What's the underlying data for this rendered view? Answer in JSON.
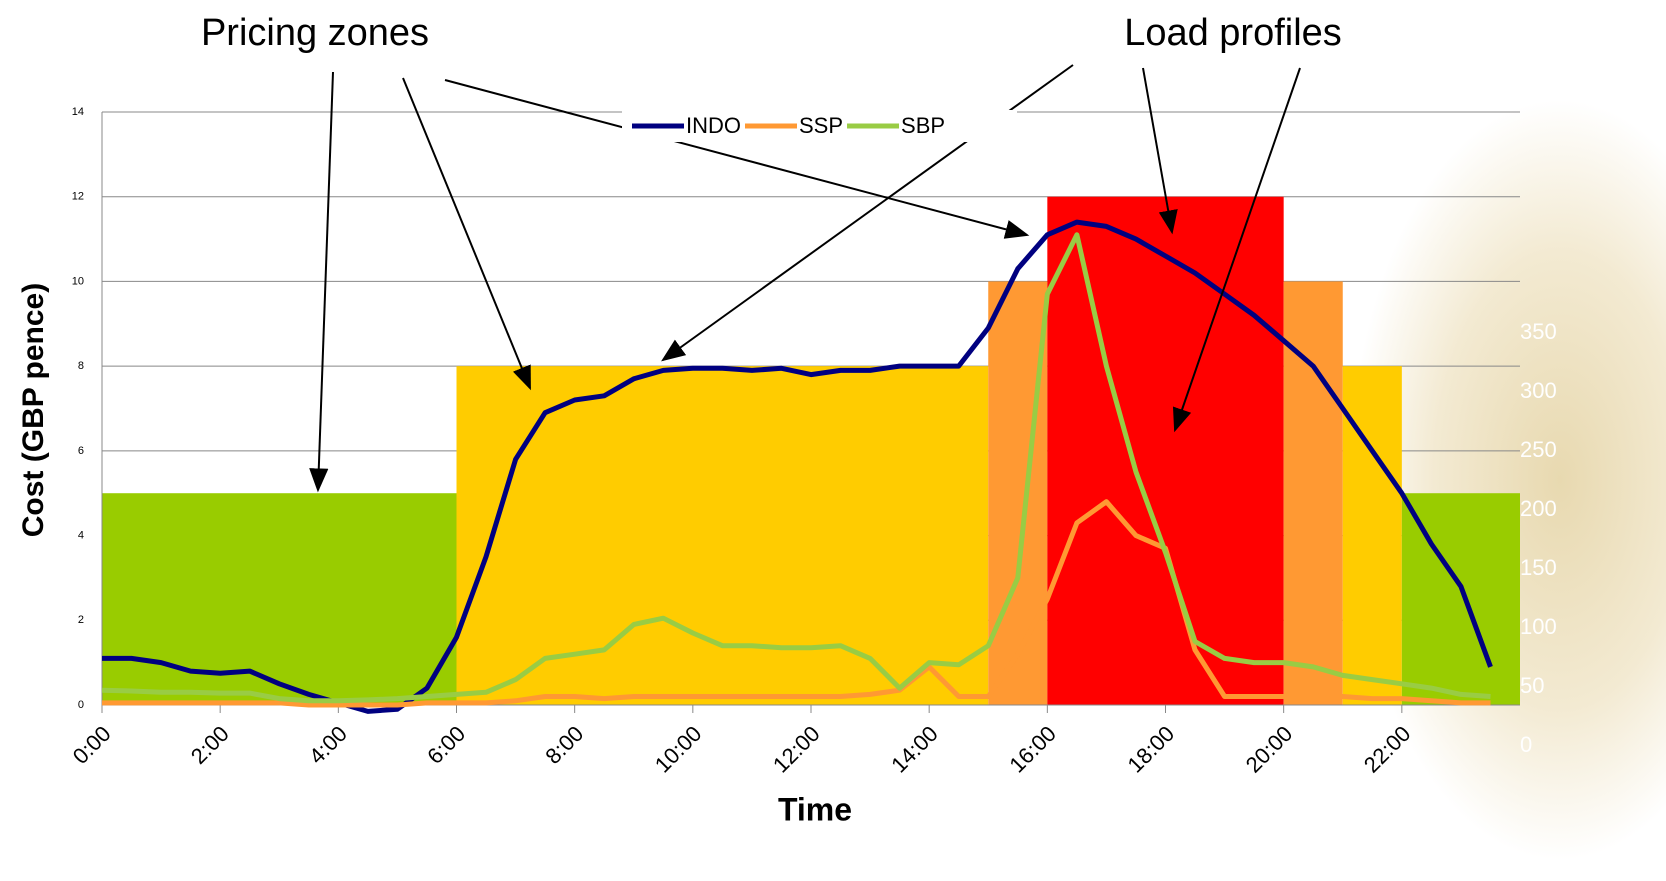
{
  "chart_data": {
    "type": "line",
    "annotations": [
      "Pricing zones",
      "Load profiles"
    ],
    "y_label": "Cost (GBP pence)",
    "x_label": "Time",
    "legend": "top",
    "grid": true,
    "xlim": [
      0,
      24
    ],
    "ylim": [
      0,
      14
    ],
    "yticks": [
      0,
      2,
      4,
      6,
      8,
      10,
      12,
      14
    ],
    "xticks": [
      {
        "value": 0,
        "label": "0:00"
      },
      {
        "value": 2,
        "label": "2:00"
      },
      {
        "value": 4,
        "label": "4:00"
      },
      {
        "value": 6,
        "label": "6:00"
      },
      {
        "value": 8,
        "label": "8:00"
      },
      {
        "value": 10,
        "label": "10:00"
      },
      {
        "value": 12,
        "label": "12:00"
      },
      {
        "value": 14,
        "label": "14:00"
      },
      {
        "value": 16,
        "label": "16:00"
      },
      {
        "value": 18,
        "label": "18:00"
      },
      {
        "value": 20,
        "label": "20:00"
      },
      {
        "value": 22,
        "label": "22:00"
      }
    ],
    "y2lim": [
      0,
      350
    ],
    "y2ticks": [
      0,
      50,
      100,
      150,
      200,
      250,
      300,
      350
    ],
    "zones": [
      {
        "start": 0,
        "end": 6,
        "value": 5,
        "color": "#99cc00"
      },
      {
        "start": 6,
        "end": 15,
        "value": 8,
        "color": "#ffcc00"
      },
      {
        "start": 15,
        "end": 16,
        "value": 10,
        "color": "#ff9933"
      },
      {
        "start": 16,
        "end": 20,
        "value": 12,
        "color": "#ff0000"
      },
      {
        "start": 20,
        "end": 21,
        "value": 10,
        "color": "#ff9933"
      },
      {
        "start": 21,
        "end": 22,
        "value": 8,
        "color": "#ffcc00"
      },
      {
        "start": 22,
        "end": 24,
        "value": 5,
        "color": "#99cc00"
      }
    ],
    "x": [
      0,
      0.5,
      1,
      1.5,
      2,
      2.5,
      3,
      3.5,
      4,
      4.5,
      5,
      5.5,
      6,
      6.5,
      7,
      7.5,
      8,
      8.5,
      9,
      9.5,
      10,
      10.5,
      11,
      11.5,
      12,
      12.5,
      13,
      13.5,
      14,
      14.5,
      15,
      15.5,
      16,
      16.5,
      17,
      17.5,
      18,
      18.5,
      19,
      19.5,
      20,
      20.5,
      21,
      21.5,
      22,
      22.5,
      23,
      23.5
    ],
    "series": [
      {
        "name": "INDO",
        "color": "#000080",
        "values": [
          1.1,
          1.1,
          1.0,
          0.8,
          0.75,
          0.8,
          0.5,
          0.25,
          0.05,
          -0.15,
          -0.1,
          0.4,
          1.6,
          3.5,
          5.8,
          6.9,
          7.2,
          7.3,
          7.7,
          7.9,
          7.95,
          7.95,
          7.9,
          7.95,
          7.8,
          7.9,
          7.9,
          8.0,
          8.0,
          8.0,
          8.9,
          10.3,
          11.1,
          11.4,
          11.3,
          11.0,
          10.6,
          10.2,
          9.7,
          9.2,
          8.6,
          8.0,
          7.0,
          6.0,
          5.0,
          3.8,
          2.8,
          0.9
        ]
      },
      {
        "name": "SSP",
        "color": "#ff9933",
        "values": [
          0.05,
          0.05,
          0.05,
          0.05,
          0.05,
          0.05,
          0.05,
          0.0,
          0.0,
          0.0,
          0.0,
          0.05,
          0.05,
          0.05,
          0.1,
          0.2,
          0.2,
          0.15,
          0.2,
          0.2,
          0.2,
          0.2,
          0.2,
          0.2,
          0.2,
          0.2,
          0.25,
          0.35,
          0.9,
          0.2,
          0.2,
          1.2,
          2.5,
          4.3,
          4.8,
          4.0,
          3.7,
          1.3,
          0.2,
          0.2,
          0.2,
          0.2,
          0.2,
          0.15,
          0.15,
          0.1,
          0.05,
          0.05
        ]
      },
      {
        "name": "SBP",
        "color": "#99cc44",
        "values": [
          0.35,
          0.33,
          0.3,
          0.3,
          0.28,
          0.28,
          0.15,
          0.1,
          0.1,
          0.12,
          0.15,
          0.2,
          0.25,
          0.3,
          0.6,
          1.1,
          1.2,
          1.3,
          1.9,
          2.05,
          1.7,
          1.4,
          1.4,
          1.35,
          1.35,
          1.4,
          1.1,
          0.4,
          1.0,
          0.95,
          1.4,
          3.0,
          9.7,
          11.1,
          8.0,
          5.5,
          3.6,
          1.5,
          1.1,
          1.0,
          1.0,
          0.9,
          0.7,
          0.6,
          0.5,
          0.4,
          0.25,
          0.2
        ]
      }
    ]
  }
}
